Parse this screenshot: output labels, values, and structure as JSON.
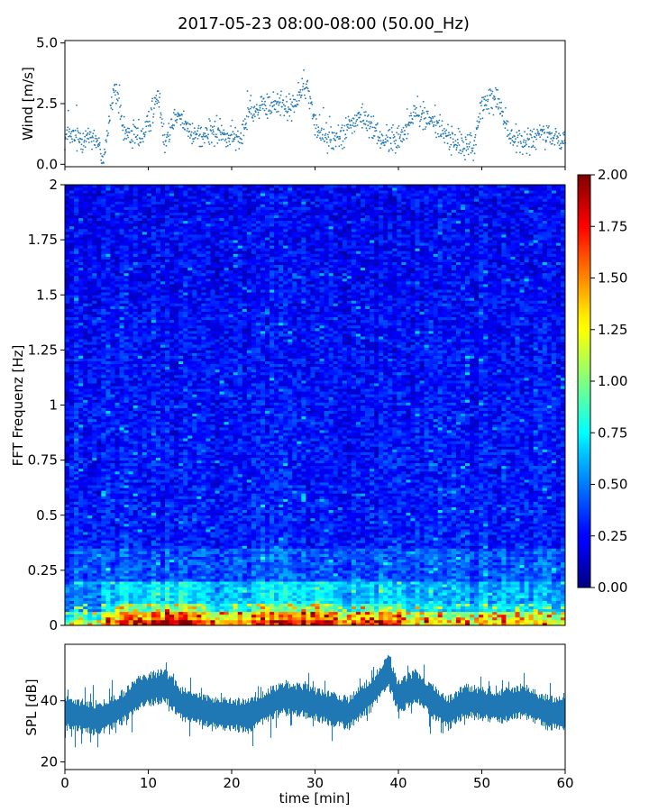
{
  "title": "2017-05-23 08:00-08:00 (50.00_Hz)",
  "chart_data": [
    {
      "type": "scatter",
      "panel": "wind",
      "ylabel": "Wind [m/s]",
      "xlim": [
        0,
        60
      ],
      "ylim": [
        -0.1,
        5.1
      ],
      "yticks": [
        "0.0",
        "2.5",
        "5.0"
      ],
      "color": "#1f77b4",
      "x_step_min": 0.05,
      "trend": [
        {
          "t": 0,
          "v": 1.1
        },
        {
          "t": 2,
          "v": 1.1
        },
        {
          "t": 3.5,
          "v": 1.2
        },
        {
          "t": 4.6,
          "v": 0.2
        },
        {
          "t": 6,
          "v": 3.3
        },
        {
          "t": 7,
          "v": 1.3
        },
        {
          "t": 9,
          "v": 1.1
        },
        {
          "t": 10,
          "v": 1.6
        },
        {
          "t": 11.2,
          "v": 2.9
        },
        {
          "t": 12,
          "v": 1.0
        },
        {
          "t": 13.5,
          "v": 2.3
        },
        {
          "t": 15,
          "v": 1.2
        },
        {
          "t": 18,
          "v": 1.3
        },
        {
          "t": 20,
          "v": 1.1
        },
        {
          "t": 21,
          "v": 1.0
        },
        {
          "t": 22,
          "v": 2.2
        },
        {
          "t": 24,
          "v": 2.3
        },
        {
          "t": 26,
          "v": 2.6
        },
        {
          "t": 27,
          "v": 2.2
        },
        {
          "t": 29,
          "v": 3.3
        },
        {
          "t": 30,
          "v": 1.6
        },
        {
          "t": 32,
          "v": 1.0
        },
        {
          "t": 35,
          "v": 1.8
        },
        {
          "t": 36,
          "v": 1.9
        },
        {
          "t": 38,
          "v": 1.0
        },
        {
          "t": 40,
          "v": 1.0
        },
        {
          "t": 42,
          "v": 2.1
        },
        {
          "t": 44,
          "v": 1.8
        },
        {
          "t": 47,
          "v": 0.8
        },
        {
          "t": 49,
          "v": 0.7
        },
        {
          "t": 50,
          "v": 2.4
        },
        {
          "t": 52,
          "v": 2.8
        },
        {
          "t": 53,
          "v": 1.3
        },
        {
          "t": 55,
          "v": 0.8
        },
        {
          "t": 57,
          "v": 1.2
        },
        {
          "t": 60,
          "v": 1.0
        }
      ],
      "spread": 0.45
    },
    {
      "type": "heatmap",
      "panel": "spectrogram",
      "ylabel": "FFT Frequenz [Hz]",
      "xlim": [
        0,
        60
      ],
      "ylim": [
        0,
        2
      ],
      "yticks": [
        "0",
        "0.25",
        "0.5",
        "0.75",
        "1",
        "1.25",
        "1.5",
        "1.75",
        "2"
      ],
      "colormap": "jet",
      "clim": [
        0,
        2
      ],
      "colorbar_ticks": [
        "0.00",
        "0.25",
        "0.50",
        "0.75",
        "1.00",
        "1.25",
        "1.50",
        "1.75",
        "2.00"
      ],
      "n_time_bins": 110,
      "n_freq_bins": 160,
      "low_freq_energy": [
        {
          "t": 0,
          "v": 0.9
        },
        {
          "t": 4,
          "v": 0.9
        },
        {
          "t": 6,
          "v": 1.4
        },
        {
          "t": 10,
          "v": 1.5
        },
        {
          "t": 14,
          "v": 1.7
        },
        {
          "t": 17,
          "v": 1.2
        },
        {
          "t": 25,
          "v": 1.4
        },
        {
          "t": 30,
          "v": 1.6
        },
        {
          "t": 34,
          "v": 1.3
        },
        {
          "t": 38,
          "v": 1.5
        },
        {
          "t": 42,
          "v": 1.2
        },
        {
          "t": 46,
          "v": 1.0
        },
        {
          "t": 52,
          "v": 1.2
        },
        {
          "t": 56,
          "v": 1.1
        },
        {
          "t": 60,
          "v": 1.0
        }
      ]
    },
    {
      "type": "area",
      "panel": "spl",
      "ylabel": "SPL [dB]",
      "xlabel": "time [min]",
      "xlim": [
        0,
        60
      ],
      "ylim": [
        17.5,
        58.5
      ],
      "yticks": [
        "20",
        "40"
      ],
      "xticks": [
        "0",
        "10",
        "20",
        "30",
        "40",
        "50",
        "60"
      ],
      "color": "#1f77b4",
      "trend": [
        {
          "t": 0,
          "v": 36
        },
        {
          "t": 4,
          "v": 34
        },
        {
          "t": 7,
          "v": 38
        },
        {
          "t": 9,
          "v": 43
        },
        {
          "t": 12,
          "v": 45
        },
        {
          "t": 14,
          "v": 39
        },
        {
          "t": 18,
          "v": 36
        },
        {
          "t": 22,
          "v": 35
        },
        {
          "t": 26,
          "v": 41
        },
        {
          "t": 29,
          "v": 40
        },
        {
          "t": 31,
          "v": 38
        },
        {
          "t": 34,
          "v": 36
        },
        {
          "t": 37,
          "v": 43
        },
        {
          "t": 38.8,
          "v": 50
        },
        {
          "t": 40,
          "v": 41
        },
        {
          "t": 42,
          "v": 45
        },
        {
          "t": 44,
          "v": 40
        },
        {
          "t": 46,
          "v": 36
        },
        {
          "t": 48,
          "v": 40
        },
        {
          "t": 52,
          "v": 38
        },
        {
          "t": 55,
          "v": 40
        },
        {
          "t": 58,
          "v": 36
        },
        {
          "t": 60,
          "v": 36
        }
      ],
      "band_half_width": 4.5
    }
  ]
}
